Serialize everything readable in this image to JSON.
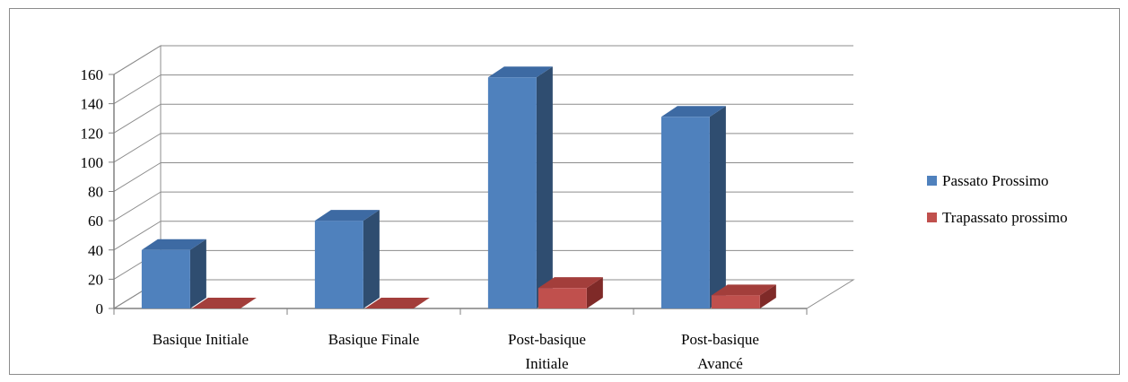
{
  "chart_data": {
    "type": "bar",
    "categories": [
      [
        "Basique Initiale"
      ],
      [
        "Basique Finale"
      ],
      [
        "Post-basique",
        "Initiale"
      ],
      [
        "Post-basique",
        "Avancé"
      ]
    ],
    "series": [
      {
        "name": "Passato Prossimo",
        "values": [
          40,
          60,
          158,
          131
        ]
      },
      {
        "name": "Trapassato prossimo",
        "values": [
          0,
          0,
          14,
          9
        ]
      }
    ],
    "yticks": [
      "0",
      "20",
      "40",
      "60",
      "80",
      "100",
      "120",
      "140",
      "160"
    ],
    "ylim": [
      0,
      160
    ],
    "grid": true,
    "legend_position": "right",
    "style": "3d-clustered-column",
    "colors": {
      "series": [
        "#4f81bd",
        "#c0504d"
      ],
      "series_side": [
        "#2f4d70",
        "#7f2a28"
      ],
      "series_top": [
        "#3d6aa3",
        "#a33e3b"
      ],
      "grid": "#8c8c8c",
      "axis": "#808080"
    }
  }
}
